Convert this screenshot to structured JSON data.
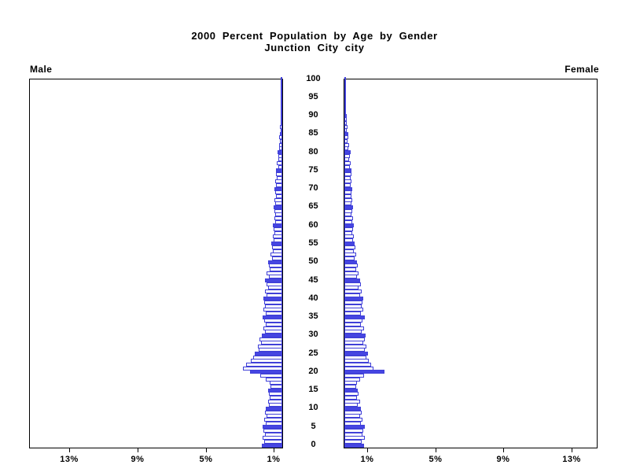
{
  "title": {
    "line1": "2000 Percent Population by Age by Gender",
    "line2": "Junction City city"
  },
  "labels": {
    "male": "Male",
    "female": "Female"
  },
  "axis": {
    "age_tick_values": [
      0,
      5,
      10,
      15,
      20,
      25,
      30,
      35,
      40,
      45,
      50,
      55,
      60,
      65,
      70,
      75,
      80,
      85,
      90,
      95,
      100
    ],
    "male_pct_ticks": [
      13,
      9,
      5,
      1
    ],
    "female_pct_ticks": [
      1,
      5,
      9,
      13
    ],
    "pct_suffix": "%"
  },
  "colors": {
    "bar_blue": "#4646e2",
    "bar_outline": "#4040d8",
    "text": "#000000",
    "background": "#ffffff"
  },
  "chart_data": {
    "type": "bar",
    "subtype": "population-pyramid",
    "title": "2000 Percent Population by Age by Gender",
    "subtitle": "Junction City city",
    "left_series": "Male",
    "right_series": "Female",
    "unit": "percent of total population per single year of age",
    "age_min": 0,
    "age_max": 100,
    "age_tick_interval": 5,
    "pct_ticks": [
      1,
      5,
      9,
      13
    ],
    "xlim": [
      0,
      15
    ],
    "bar_fill_rule": "ages divisible by 5 are solid blue; other ages are white with blue outline",
    "legend_position": "none",
    "grid": false,
    "male_pct": [
      1.2,
      1.05,
      1.15,
      1.0,
      1.1,
      1.15,
      0.95,
      1.05,
      0.9,
      1.0,
      0.95,
      0.8,
      0.85,
      0.75,
      0.8,
      0.85,
      0.7,
      0.75,
      0.95,
      1.3,
      1.9,
      2.3,
      2.1,
      1.85,
      1.7,
      1.6,
      1.4,
      1.45,
      1.25,
      1.35,
      1.2,
      1.0,
      1.1,
      0.95,
      1.05,
      1.15,
      0.95,
      1.1,
      1.0,
      1.05,
      1.1,
      0.9,
      1.0,
      0.85,
      0.9,
      1.0,
      0.8,
      0.9,
      0.75,
      0.8,
      0.85,
      0.6,
      0.7,
      0.55,
      0.6,
      0.65,
      0.5,
      0.55,
      0.45,
      0.5,
      0.55,
      0.4,
      0.45,
      0.4,
      0.45,
      0.5,
      0.4,
      0.45,
      0.35,
      0.4,
      0.45,
      0.35,
      0.4,
      0.3,
      0.35,
      0.35,
      0.25,
      0.3,
      0.22,
      0.25,
      0.28,
      0.18,
      0.2,
      0.15,
      0.17,
      0.15,
      0.1,
      0.12,
      0.08,
      0.09,
      0.1,
      0.05,
      0.06,
      0.04,
      0.04,
      0.03,
      0.02,
      0.02,
      0.01,
      0.01,
      0.01
    ],
    "female_pct": [
      1.15,
      1.0,
      1.2,
      1.05,
      1.1,
      1.2,
      0.95,
      1.05,
      0.9,
      1.0,
      0.95,
      0.8,
      0.9,
      0.75,
      0.85,
      0.8,
      0.7,
      0.75,
      0.9,
      1.15,
      2.35,
      1.7,
      1.55,
      1.45,
      1.3,
      1.4,
      1.2,
      1.3,
      1.1,
      1.2,
      1.25,
      1.0,
      1.15,
      0.95,
      1.05,
      1.2,
      0.95,
      1.1,
      1.0,
      1.05,
      1.1,
      0.9,
      1.0,
      0.85,
      0.95,
      0.9,
      0.75,
      0.85,
      0.7,
      0.8,
      0.75,
      0.6,
      0.7,
      0.55,
      0.65,
      0.6,
      0.5,
      0.55,
      0.45,
      0.5,
      0.55,
      0.45,
      0.5,
      0.4,
      0.45,
      0.5,
      0.4,
      0.45,
      0.4,
      0.42,
      0.48,
      0.38,
      0.42,
      0.35,
      0.4,
      0.42,
      0.32,
      0.36,
      0.28,
      0.32,
      0.35,
      0.25,
      0.28,
      0.2,
      0.24,
      0.22,
      0.15,
      0.18,
      0.12,
      0.14,
      0.15,
      0.08,
      0.1,
      0.06,
      0.07,
      0.05,
      0.03,
      0.03,
      0.02,
      0.01,
      0.01
    ]
  }
}
